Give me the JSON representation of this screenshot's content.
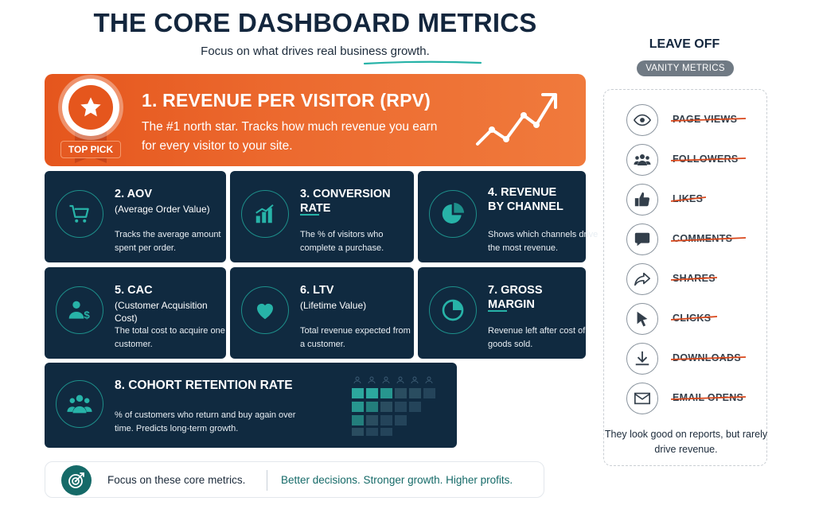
{
  "header": {
    "title": "THE CORE DASHBOARD METRICS",
    "subtitle_prefix": "Focus on what drives ",
    "subtitle_highlight": "real business growth",
    "subtitle_suffix": "."
  },
  "hero": {
    "badge": "TOP PICK",
    "title": "1. REVENUE PER VISITOR (RPV)",
    "description": "The #1 north star. Tracks how much revenue you earn for every visitor to your site.",
    "icon": "star-icon",
    "chart_icon": "trend-up-icon"
  },
  "cards": [
    {
      "title": "2. AOV",
      "subtitle": "(Average Order Value)",
      "description": "Tracks the average amount spent per order.",
      "icon": "cart-icon"
    },
    {
      "title": "3. CONVERSION RATE",
      "subtitle": "",
      "description": "The % of visitors who complete a purchase.",
      "icon": "bar-chart-icon"
    },
    {
      "title": "4. REVENUE\nBY CHANNEL",
      "subtitle": "",
      "description": "Shows which channels drive the most revenue.",
      "icon": "pie-chart-icon"
    },
    {
      "title": "5. CAC",
      "subtitle": "(Customer Acquisition Cost)",
      "description": "The total cost to acquire one customer.",
      "icon": "user-dollar-icon"
    },
    {
      "title": "6. LTV",
      "subtitle": "(Lifetime Value)",
      "description": "Total revenue expected from a customer.",
      "icon": "heart-icon"
    },
    {
      "title": "7. GROSS MARGIN",
      "subtitle": "",
      "description": "Revenue left after cost of goods sold.",
      "icon": "pie-slice-icon"
    }
  ],
  "cohort": {
    "title": "8. COHORT RETENTION RATE",
    "description": "% of customers who return and buy again over time. Predicts long-term growth.",
    "icon": "group-icon"
  },
  "footer": {
    "main": "Focus on these core metrics.",
    "tagline": "Better decisions. Stronger growth. Higher profits.",
    "icon": "target-icon"
  },
  "vanity": {
    "heading": "LEAVE OFF",
    "badge": "VANITY METRICS",
    "items": [
      {
        "label": "PAGE VIEWS",
        "icon": "eye-icon"
      },
      {
        "label": "FOLLOWERS",
        "icon": "followers-icon"
      },
      {
        "label": "LIKES",
        "icon": "thumbs-up-icon"
      },
      {
        "label": "COMMENTS",
        "icon": "comment-icon"
      },
      {
        "label": "SHARES",
        "icon": "share-icon"
      },
      {
        "label": "CLICKS",
        "icon": "cursor-icon"
      },
      {
        "label": "DOWNLOADS",
        "icon": "download-icon"
      },
      {
        "label": "EMAIL OPENS",
        "icon": "envelope-icon"
      }
    ],
    "footer": "They look good on reports, but rarely drive revenue."
  },
  "colors": {
    "accent_orange": "#e5561d",
    "navy": "#102a40",
    "teal": "#27b3a8",
    "strike": "#d9461a"
  }
}
